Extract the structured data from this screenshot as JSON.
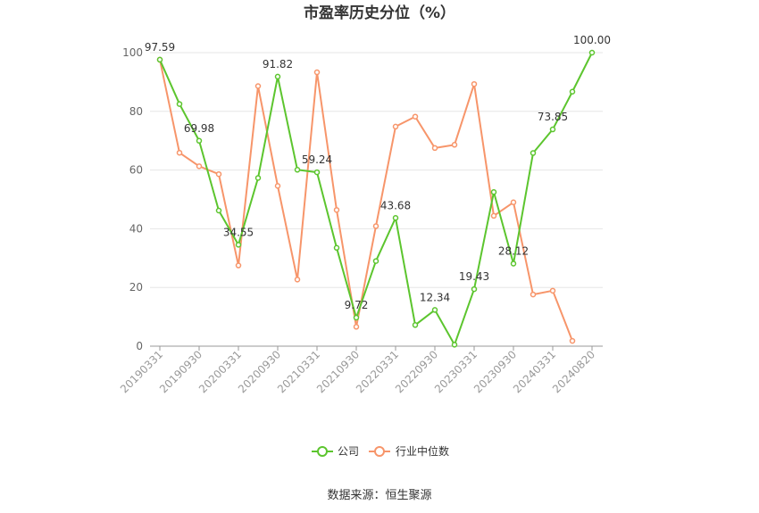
{
  "chart_data": {
    "type": "line",
    "title": "市盈率历史分位（%）",
    "ylim": [
      0,
      100
    ],
    "yticks": [
      0,
      20,
      40,
      60,
      80,
      100
    ],
    "x": [
      "20190331",
      "20190630",
      "20190930",
      "20191231",
      "20200331",
      "20200630",
      "20200930",
      "20201231",
      "20210331",
      "20210630",
      "20210930",
      "20211231",
      "20220331",
      "20220630",
      "20220930",
      "20221231",
      "20230331",
      "20230630",
      "20230930",
      "20231231",
      "20240331",
      "20240630",
      "20240820"
    ],
    "x_tick_labels": [
      "20190331",
      "20190930",
      "20200331",
      "20200930",
      "20210331",
      "20210930",
      "20220331",
      "20220930",
      "20230331",
      "20230930",
      "20240331",
      "20240820"
    ],
    "grid": true,
    "legend_position": "bottom",
    "series": [
      {
        "name": "公司",
        "color": "#5cc52e",
        "values": [
          97.59,
          82.5,
          69.98,
          46.2,
          34.55,
          57.3,
          91.82,
          60.1,
          59.24,
          33.5,
          9.72,
          29.0,
          43.68,
          7.2,
          12.34,
          0.5,
          19.43,
          52.5,
          28.12,
          65.8,
          73.85,
          86.7,
          100.0
        ],
        "labels": {
          "0": "97.59",
          "2": "69.98",
          "4": "34.55",
          "6": "91.82",
          "8": "59.24",
          "10": "9.72",
          "12": "43.68",
          "14": "12.34",
          "16": "19.43",
          "18": "28.12",
          "20": "73.85",
          "22": "100.00"
        }
      },
      {
        "name": "行业中位数",
        "color": "#f7956a",
        "values": [
          97.6,
          65.9,
          61.3,
          58.6,
          27.5,
          88.6,
          54.6,
          22.7,
          93.3,
          46.4,
          6.6,
          40.9,
          74.8,
          78.2,
          67.5,
          68.6,
          89.3,
          44.4,
          49.0,
          17.6,
          18.9,
          1.8,
          null
        ]
      }
    ]
  },
  "footer": {
    "source": "数据来源：恒生聚源"
  }
}
